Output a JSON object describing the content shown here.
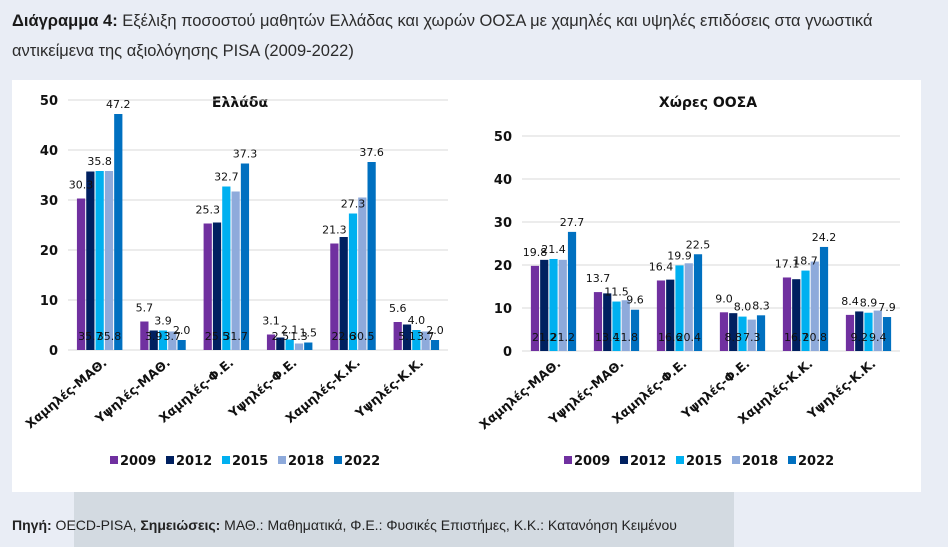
{
  "caption": {
    "label": "Διάγραμμα 4:",
    "text": " Εξέλιξη ποσοστού μαθητών Ελλάδας και χωρών ΟΟΣΑ με χαμηλές και υψηλές επιδόσεις στα γνωστικά αντικείμενα της αξιολόγησης PISA (2009-2022)"
  },
  "source": {
    "source_label": "Πηγή:",
    "source_text": " OECD-PISA, ",
    "notes_label": "Σημειώσεις:",
    "notes_text": " ΜΑΘ.: Μαθηματικά, Φ.Ε.: Φυσικές Επιστήμες, Κ.Κ.: Κατανόηση Κειμένου"
  },
  "colors": {
    "2009": "#7030a0",
    "2012": "#002060",
    "2015": "#00b0f0",
    "2018": "#8eaadb",
    "2022": "#0070c0"
  },
  "chart_data": [
    {
      "type": "bar",
      "title": "Ελλάδα",
      "categories": [
        "Χαμηλές-ΜΑΘ.",
        "Υψηλές-ΜΑΘ.",
        "Χαμηλές-Φ.Ε.",
        "Υψηλές-Φ.Ε.",
        "Χαμηλές-Κ.Κ.",
        "Υψηλές-Κ.Κ."
      ],
      "series": [
        {
          "name": "2009",
          "values": [
            30.3,
            5.7,
            25.3,
            3.1,
            21.3,
            5.6
          ]
        },
        {
          "name": "2012",
          "values": [
            35.7,
            3.9,
            25.5,
            2.5,
            22.6,
            5.1
          ]
        },
        {
          "name": "2015",
          "values": [
            35.8,
            3.9,
            32.7,
            2.1,
            27.3,
            4.0
          ]
        },
        {
          "name": "2018",
          "values": [
            35.8,
            3.7,
            31.7,
            1.3,
            30.5,
            3.7
          ]
        },
        {
          "name": "2022",
          "values": [
            47.2,
            2.0,
            37.3,
            1.5,
            37.6,
            2.0
          ]
        }
      ],
      "yticks": [
        0,
        10,
        20,
        30,
        40,
        50
      ],
      "ylim": [
        0,
        50
      ],
      "xlabel": "",
      "ylabel": "",
      "grid": true,
      "legend": "bottom"
    },
    {
      "type": "bar",
      "title": "Χώρες ΟΟΣΑ",
      "categories": [
        "Χαμηλές-ΜΑΘ.",
        "Υψηλές-ΜΑΘ.",
        "Χαμηλές-Φ.Ε.",
        "Υψηλές-Φ.Ε.",
        "Χαμηλές-Κ.Κ.",
        "Υψηλές-Κ.Κ."
      ],
      "series": [
        {
          "name": "2009",
          "values": [
            19.8,
            13.7,
            16.4,
            9.0,
            17.1,
            8.4
          ]
        },
        {
          "name": "2012",
          "values": [
            21.2,
            13.4,
            16.6,
            8.8,
            16.7,
            9.2
          ]
        },
        {
          "name": "2015",
          "values": [
            21.4,
            11.5,
            19.9,
            8.0,
            18.7,
            8.9
          ]
        },
        {
          "name": "2018",
          "values": [
            21.2,
            11.8,
            20.4,
            7.3,
            20.8,
            9.4
          ]
        },
        {
          "name": "2022",
          "values": [
            27.7,
            9.6,
            22.5,
            8.3,
            24.2,
            7.9
          ]
        }
      ],
      "yticks": [
        0,
        10,
        20,
        30,
        40,
        50
      ],
      "ylim": [
        0,
        50
      ],
      "xlabel": "",
      "ylabel": "",
      "grid": true,
      "legend": "bottom"
    }
  ]
}
